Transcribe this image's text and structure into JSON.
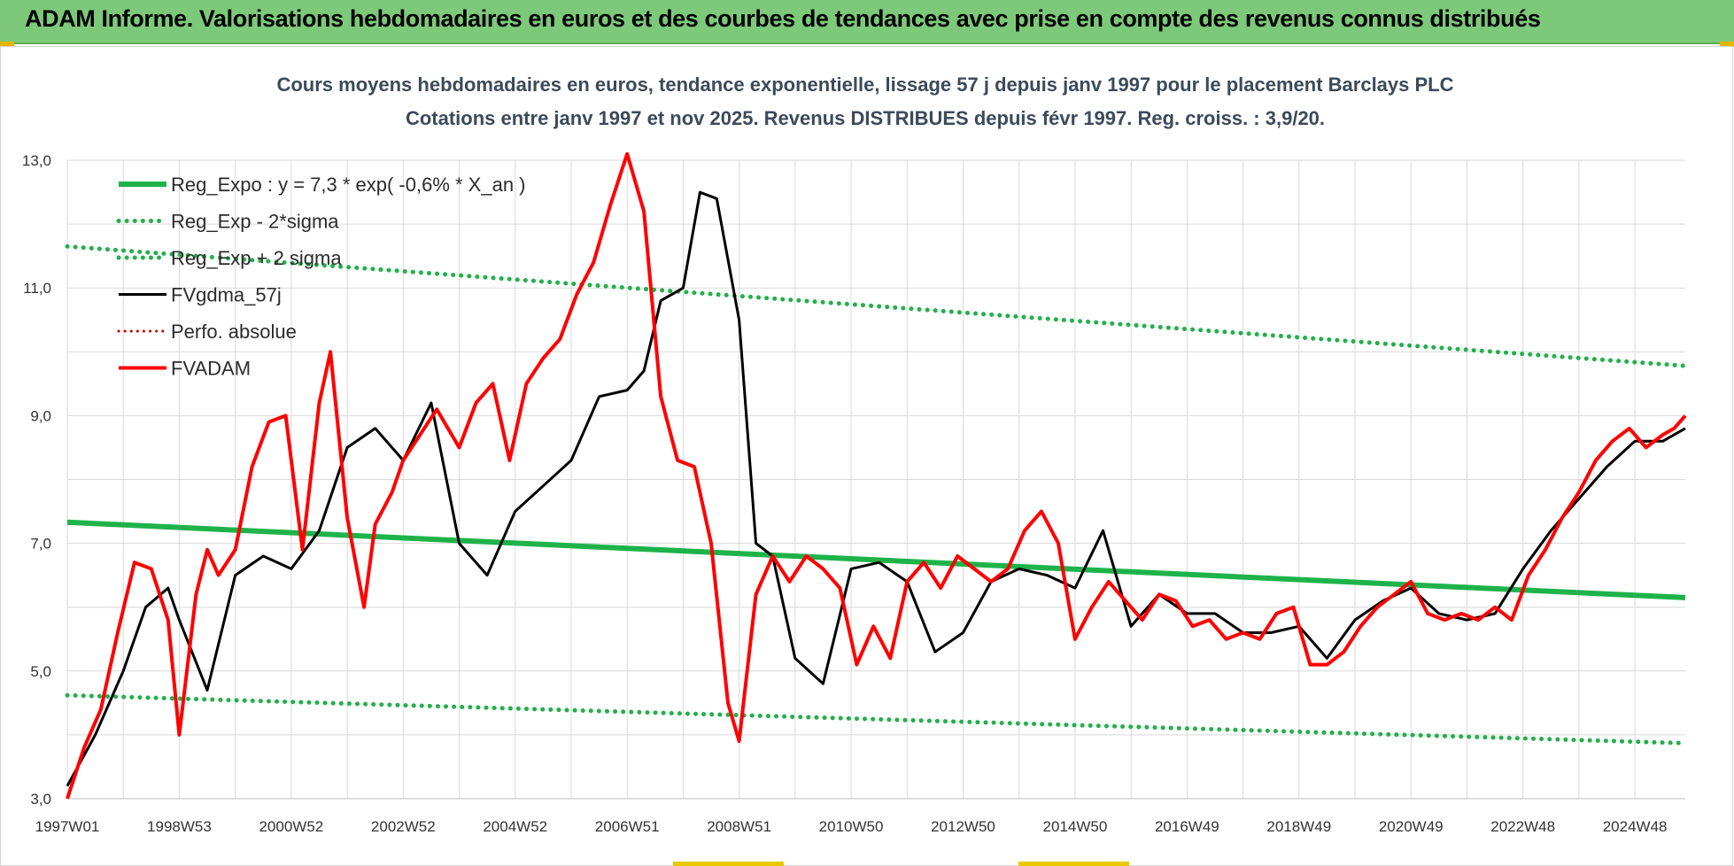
{
  "banner": {
    "title": "ADAM Informe. Valorisations hebdomadaires en euros et des courbes de tendances avec prise en compte des revenus connus distribués"
  },
  "colors": {
    "banner": "#7dc97a",
    "reg_expo": "#1db34a",
    "reg_band": "#22b04b",
    "fvgdma": "#000000",
    "perfo": "#c00000",
    "fvadam": "#ff0000",
    "grid": "#d9d9d9"
  },
  "chart_data": {
    "type": "line",
    "title_lines": [
      "Cours moyens hebdomadaires en euros, tendance exponentielle, lissage 57 j depuis janv 1997 pour le placement Barclays PLC",
      "Cotations entre janv 1997 et nov 2025. Revenus DISTRIBUES depuis févr 1997. Reg. croiss. : 3,9/20."
    ],
    "ylim": [
      3.0,
      13.0
    ],
    "y_ticks": [
      "3,0",
      "5,0",
      "7,0",
      "9,0",
      "11,0",
      "13,0"
    ],
    "x_range": [
      1997.0,
      2025.9
    ],
    "x_ticks": [
      {
        "label": "1997W01",
        "t": 1997.0
      },
      {
        "label": "1998W53",
        "t": 1999.0
      },
      {
        "label": "2000W52",
        "t": 2001.0
      },
      {
        "label": "2002W52",
        "t": 2003.0
      },
      {
        "label": "2004W52",
        "t": 2005.0
      },
      {
        "label": "2006W51",
        "t": 2007.0
      },
      {
        "label": "2008W51",
        "t": 2009.0
      },
      {
        "label": "2010W50",
        "t": 2011.0
      },
      {
        "label": "2012W50",
        "t": 2013.0
      },
      {
        "label": "2014W50",
        "t": 2015.0
      },
      {
        "label": "2016W49",
        "t": 2017.0
      },
      {
        "label": "2018W49",
        "t": 2019.0
      },
      {
        "label": "2020W49",
        "t": 2021.0
      },
      {
        "label": "2022W48",
        "t": 2023.0
      },
      {
        "label": "2024W48",
        "t": 2025.0
      }
    ],
    "grid": true,
    "legend_position": "top-left",
    "series": [
      {
        "key": "reg_expo",
        "name": "Reg_Expo : y = 7,3 * exp( -0,6% *  X_an )",
        "style": "solid-thick",
        "x": [
          1997.0,
          2025.9
        ],
        "values": [
          7.33,
          6.15
        ]
      },
      {
        "key": "reg_minus",
        "name": "Reg_Exp - 2*sigma",
        "style": "dotted",
        "x": [
          1997.0,
          2025.9
        ],
        "values": [
          4.62,
          3.87
        ]
      },
      {
        "key": "reg_plus",
        "name": "Reg_Exp + 2 sigma",
        "style": "dotted",
        "x": [
          1997.0,
          2025.9
        ],
        "values": [
          11.65,
          9.78
        ]
      },
      {
        "key": "fvgdma",
        "name": "FVgdma_57j",
        "style": "solid-black",
        "x": [
          1997.0,
          1997.5,
          1998.0,
          1998.4,
          1998.8,
          1999.0,
          1999.5,
          2000.0,
          2000.5,
          2001.0,
          2001.5,
          2002.0,
          2002.5,
          2003.0,
          2003.5,
          2004.0,
          2004.5,
          2005.0,
          2005.5,
          2006.0,
          2006.5,
          2007.0,
          2007.3,
          2007.6,
          2008.0,
          2008.3,
          2008.6,
          2009.0,
          2009.3,
          2009.6,
          2010.0,
          2010.5,
          2011.0,
          2011.5,
          2012.0,
          2012.5,
          2013.0,
          2013.5,
          2014.0,
          2014.5,
          2015.0,
          2015.5,
          2016.0,
          2016.5,
          2017.0,
          2017.5,
          2018.0,
          2018.5,
          2019.0,
          2019.5,
          2020.0,
          2020.5,
          2021.0,
          2021.5,
          2022.0,
          2022.5,
          2023.0,
          2023.5,
          2024.0,
          2024.5,
          2025.0,
          2025.5,
          2025.9
        ],
        "values": [
          3.2,
          4.0,
          5.0,
          6.0,
          6.3,
          5.8,
          4.7,
          6.5,
          6.8,
          6.6,
          7.2,
          8.5,
          8.8,
          8.3,
          9.2,
          7.0,
          6.5,
          7.5,
          7.9,
          8.3,
          9.3,
          9.4,
          9.7,
          10.8,
          11.0,
          12.5,
          12.4,
          10.5,
          7.0,
          6.8,
          5.2,
          4.8,
          6.6,
          6.7,
          6.4,
          5.3,
          5.6,
          6.4,
          6.6,
          6.5,
          6.3,
          7.2,
          5.7,
          6.2,
          5.9,
          5.9,
          5.6,
          5.6,
          5.7,
          5.2,
          5.8,
          6.1,
          6.3,
          5.9,
          5.8,
          5.9,
          6.6,
          7.2,
          7.7,
          8.2,
          8.6,
          8.6,
          8.8
        ]
      },
      {
        "key": "perfo",
        "name": "Perfo. absolue",
        "style": "dotted-red",
        "x": [],
        "values": []
      },
      {
        "key": "fvadam",
        "name": "FVADAM",
        "style": "solid-red",
        "x": [
          1997.0,
          1997.3,
          1997.6,
          1997.9,
          1998.2,
          1998.5,
          1998.8,
          1999.0,
          1999.3,
          1999.5,
          1999.7,
          2000.0,
          2000.3,
          2000.6,
          2000.9,
          2001.2,
          2001.5,
          2001.7,
          2002.0,
          2002.3,
          2002.5,
          2002.8,
          2003.0,
          2003.3,
          2003.6,
          2004.0,
          2004.3,
          2004.6,
          2004.9,
          2005.2,
          2005.5,
          2005.8,
          2006.1,
          2006.4,
          2006.7,
          2007.0,
          2007.3,
          2007.6,
          2007.9,
          2008.2,
          2008.5,
          2008.8,
          2009.0,
          2009.3,
          2009.6,
          2009.9,
          2010.2,
          2010.5,
          2010.8,
          2011.1,
          2011.4,
          2011.7,
          2012.0,
          2012.3,
          2012.6,
          2012.9,
          2013.2,
          2013.5,
          2013.8,
          2014.1,
          2014.4,
          2014.7,
          2015.0,
          2015.3,
          2015.6,
          2015.9,
          2016.2,
          2016.5,
          2016.8,
          2017.1,
          2017.4,
          2017.7,
          2018.0,
          2018.3,
          2018.6,
          2018.9,
          2019.2,
          2019.5,
          2019.8,
          2020.1,
          2020.4,
          2020.7,
          2021.0,
          2021.3,
          2021.6,
          2021.9,
          2022.2,
          2022.5,
          2022.8,
          2023.1,
          2023.4,
          2023.7,
          2024.0,
          2024.3,
          2024.6,
          2024.9,
          2025.2,
          2025.5,
          2025.7,
          2025.9
        ],
        "values": [
          3.0,
          3.8,
          4.4,
          5.6,
          6.7,
          6.6,
          5.8,
          4.0,
          6.2,
          6.9,
          6.5,
          6.9,
          8.2,
          8.9,
          9.0,
          6.9,
          9.2,
          10.0,
          7.4,
          6.0,
          7.3,
          7.8,
          8.3,
          8.7,
          9.1,
          8.5,
          9.2,
          9.5,
          8.3,
          9.5,
          9.9,
          10.2,
          10.9,
          11.4,
          12.3,
          13.1,
          12.2,
          9.3,
          8.3,
          8.2,
          7.0,
          4.5,
          3.9,
          6.2,
          6.8,
          6.4,
          6.8,
          6.6,
          6.3,
          5.1,
          5.7,
          5.2,
          6.4,
          6.7,
          6.3,
          6.8,
          6.6,
          6.4,
          6.6,
          7.2,
          7.5,
          7.0,
          5.5,
          6.0,
          6.4,
          6.1,
          5.8,
          6.2,
          6.1,
          5.7,
          5.8,
          5.5,
          5.6,
          5.5,
          5.9,
          6.0,
          5.1,
          5.1,
          5.3,
          5.7,
          6.0,
          6.2,
          6.4,
          5.9,
          5.8,
          5.9,
          5.8,
          6.0,
          5.8,
          6.5,
          6.9,
          7.4,
          7.8,
          8.3,
          8.6,
          8.8,
          8.5,
          8.7,
          8.8,
          9.0
        ]
      }
    ]
  }
}
